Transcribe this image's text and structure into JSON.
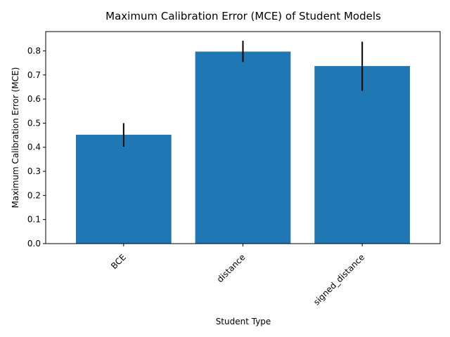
{
  "chart_data": {
    "type": "bar",
    "title": "Maximum Calibration Error (MCE) of Student Models",
    "xlabel": "Student Type",
    "ylabel": "Maximum Calibration Error (MCE)",
    "categories": [
      "BCE",
      "distance",
      "signed_distance"
    ],
    "values": [
      0.452,
      0.797,
      0.737
    ],
    "error_low": [
      0.402,
      0.754,
      0.634
    ],
    "error_high": [
      0.5,
      0.842,
      0.838
    ],
    "ylim": [
      0,
      0.88
    ],
    "yticks": [
      0.0,
      0.1,
      0.2,
      0.3,
      0.4,
      0.5,
      0.6,
      0.7,
      0.8
    ],
    "ytick_labels": [
      "0.0",
      "0.1",
      "0.2",
      "0.3",
      "0.4",
      "0.5",
      "0.6",
      "0.7",
      "0.8"
    ],
    "xtick_rotation_deg": 45,
    "grid": false,
    "legend": "none",
    "colors": {
      "bar": "#1f77b4",
      "error_bar": "#000000",
      "axis": "#000000"
    }
  }
}
